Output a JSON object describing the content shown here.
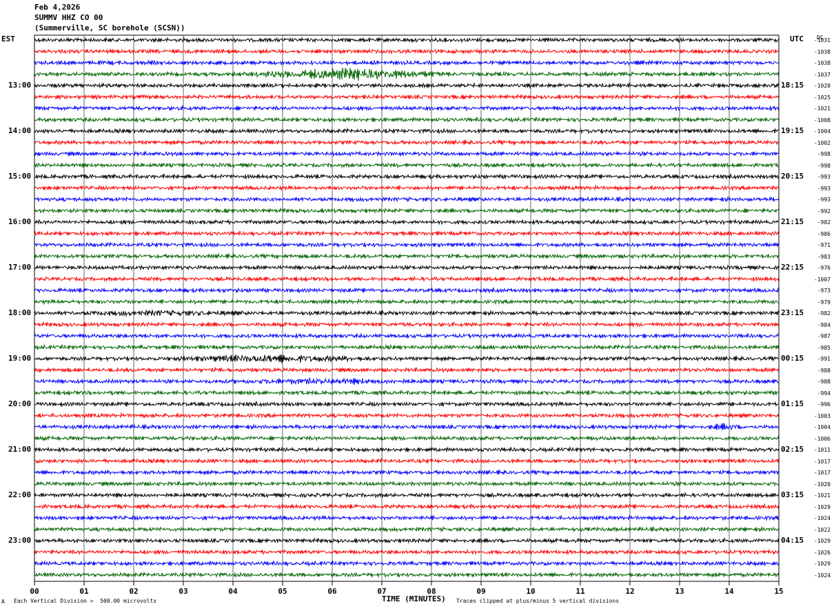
{
  "header": {
    "date": "Feb 4,2026",
    "station": "SUMMV HHZ CO 00",
    "location": "(Summerville, SC borehole (SCSN))"
  },
  "axes": {
    "left_tz": "EST",
    "right_tz": "UTC",
    "dc_label": "DC",
    "xlabel": "TIME (MINUTES)"
  },
  "footer": {
    "scale_marker": "A",
    "scale_note": "Each Vertical Division =  500.00 microvolts",
    "clip_note": "Traces clipped at plus/minus 5 vertical divisions"
  },
  "chart_data": {
    "type": "line",
    "title": "",
    "x_ticks": [
      "00",
      "01",
      "02",
      "03",
      "04",
      "05",
      "06",
      "07",
      "08",
      "09",
      "10",
      "11",
      "12",
      "13",
      "14",
      "15"
    ],
    "xlim": [
      0,
      15
    ],
    "grid": true,
    "trace_colors": [
      "#000000",
      "#ff0000",
      "#0000ff",
      "#006400"
    ],
    "left_hour_labels": [
      "13:00",
      "14:00",
      "15:00",
      "16:00",
      "17:00",
      "18:00",
      "19:00",
      "20:00",
      "21:00",
      "22:00",
      "23:00"
    ],
    "right_hour_labels": [
      "18:15",
      "19:15",
      "20:15",
      "21:15",
      "22:15",
      "23:15",
      "00:15",
      "01:15",
      "02:15",
      "03:15",
      "04:15"
    ],
    "dc_offsets": [
      "-1031",
      "-1038",
      "-1038",
      "-1037",
      "-1020",
      "-1025",
      "-1021",
      "-1008",
      "-1004",
      "-1002",
      "-998",
      "-998",
      "-993",
      "-993",
      "-993",
      "-992",
      "-982",
      "-986",
      "-971",
      "-983",
      "-976",
      "-1007",
      "-973",
      "-979",
      "-982",
      "-984",
      "-987",
      "-985",
      "-991",
      "-988",
      "-988",
      "-994",
      "-996",
      "-1003",
      "-1004",
      "-1006",
      "-1011",
      "-1017",
      "-1017",
      "-1020",
      "-1021",
      "-1029",
      "-1024",
      "-1022",
      "-1029",
      "-1026",
      "-1029",
      "-1024"
    ],
    "events": [
      {
        "trace": 3,
        "start_min": 4.2,
        "end_min": 8.5,
        "peak_min": 6.3,
        "gain": 3.2
      },
      {
        "trace": 24,
        "start_min": 1.0,
        "end_min": 4.5,
        "peak_min": 2.5,
        "gain": 1.6
      },
      {
        "trace": 28,
        "start_min": 2.5,
        "end_min": 7.0,
        "peak_min": 4.8,
        "gain": 2.2
      },
      {
        "trace": 30,
        "start_min": 3.5,
        "end_min": 8.0,
        "peak_min": 5.8,
        "gain": 1.7
      },
      {
        "trace": 34,
        "start_min": 13.5,
        "end_min": 14.3,
        "peak_min": 13.9,
        "gain": 1.8
      }
    ]
  }
}
